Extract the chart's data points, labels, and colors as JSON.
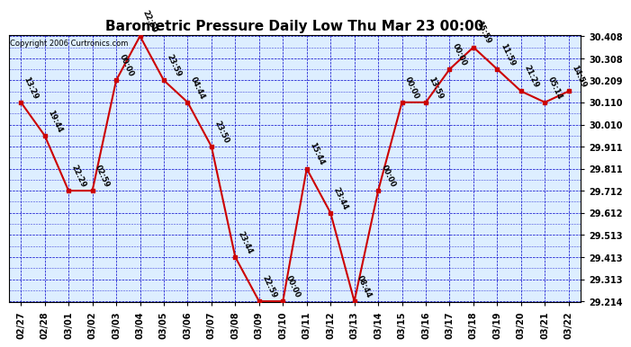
{
  "title": "Barometric Pressure Daily Low Thu Mar 23 00:00",
  "copyright": "Copyright 2006 Curtronics.com",
  "background_color": "#ffffff",
  "plot_bg_color": "#ddeeff",
  "grid_color": "#0000cc",
  "line_color": "#cc0000",
  "marker_color": "#cc0000",
  "x_labels": [
    "02/27",
    "02/28",
    "03/01",
    "03/02",
    "03/03",
    "03/04",
    "03/05",
    "03/06",
    "03/07",
    "03/08",
    "03/09",
    "03/10",
    "03/11",
    "03/12",
    "03/13",
    "03/14",
    "03/15",
    "03/16",
    "03/17",
    "03/18",
    "03/19",
    "03/20",
    "03/21",
    "03/22"
  ],
  "y_values": [
    30.11,
    29.96,
    29.712,
    29.712,
    30.209,
    30.408,
    30.209,
    30.11,
    29.911,
    29.413,
    29.214,
    29.214,
    29.811,
    29.612,
    29.214,
    29.712,
    30.11,
    30.11,
    30.259,
    30.358,
    30.259,
    30.16,
    30.11,
    30.16
  ],
  "point_labels": [
    "13:29",
    "19:44",
    "22:29",
    "02:59",
    "00:00",
    "22:59",
    "23:59",
    "04:44",
    "23:50",
    "23:44",
    "22:59",
    "00:00",
    "15:44",
    "23:44",
    "08:44",
    "00:00",
    "00:00",
    "13:59",
    "00:00",
    "15:59",
    "11:59",
    "21:29",
    "05:14",
    "14:59"
  ],
  "ylim_min": 29.214,
  "ylim_max": 30.408,
  "yticks": [
    29.214,
    29.313,
    29.413,
    29.513,
    29.612,
    29.712,
    29.811,
    29.911,
    30.01,
    30.11,
    30.209,
    30.308,
    30.408
  ],
  "title_fontsize": 11,
  "tick_fontsize": 7,
  "annotation_fontsize": 6
}
